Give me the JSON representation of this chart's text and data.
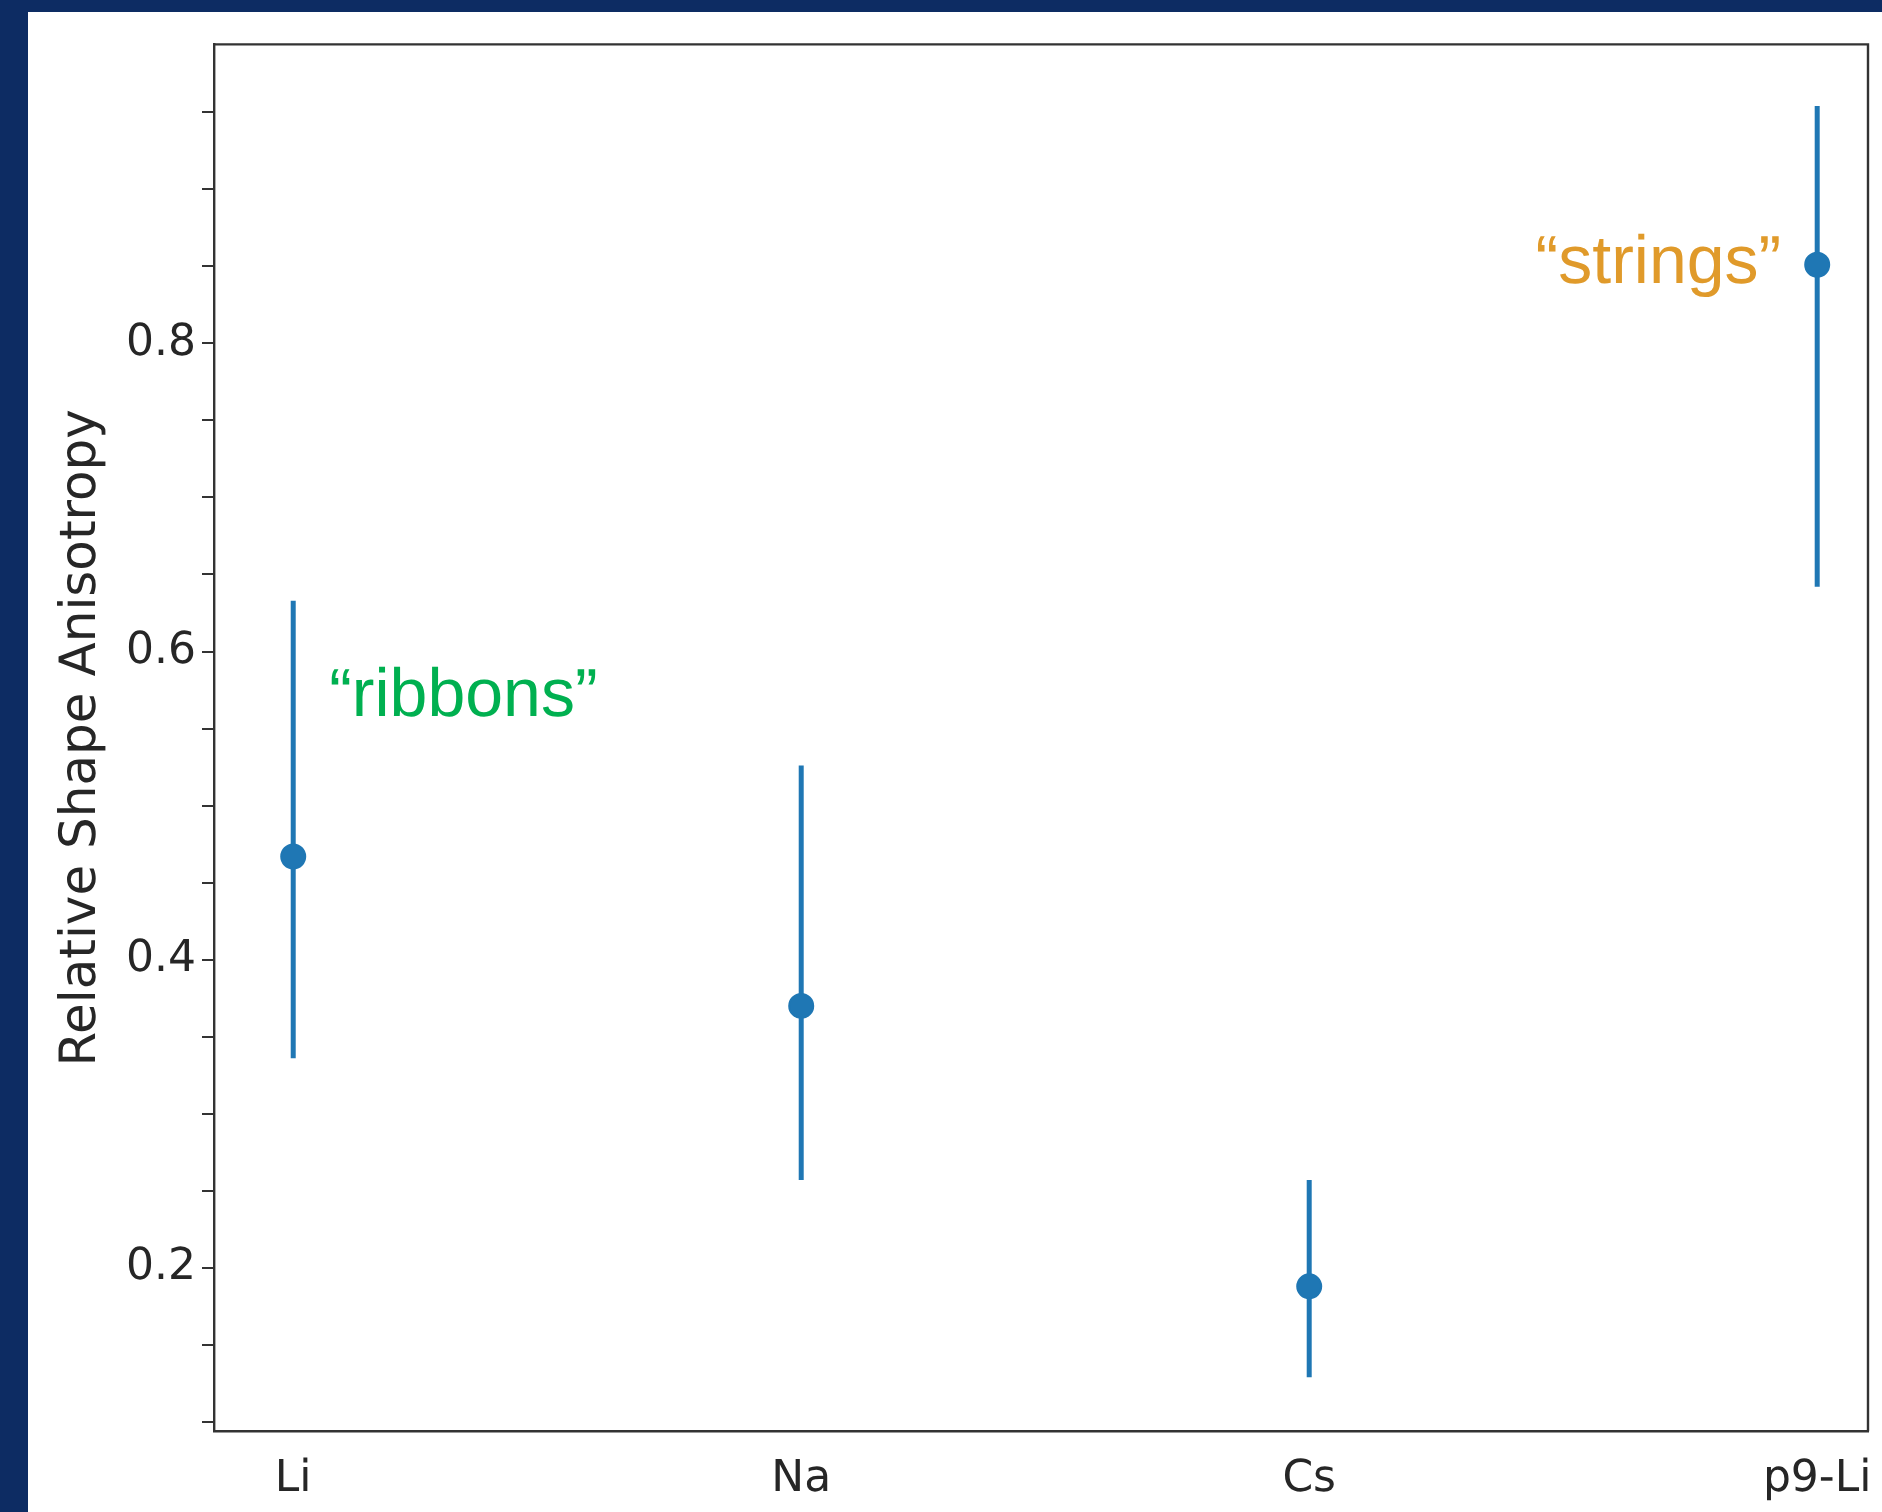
{
  "chart_data": {
    "type": "scatter",
    "ylabel": "Relative Shape Anisotropy",
    "categories": [
      "Li",
      "Na",
      "Cs",
      "p9-Li"
    ],
    "series": [
      {
        "color": "#1f77b4",
        "values": [
          0.467,
          0.37,
          0.188,
          0.851
        ],
        "errors": [
          [
            0.336,
            0.633
          ],
          [
            0.257,
            0.526
          ],
          [
            0.129,
            0.257
          ],
          [
            0.642,
            0.954
          ]
        ]
      }
    ],
    "ylim": [
      0.094,
      0.994
    ],
    "yticks": [
      {
        "value": 0.1,
        "label": null
      },
      {
        "value": 0.15,
        "label": null
      },
      0.2,
      {
        "value": 0.25,
        "label": null
      },
      {
        "value": 0.3,
        "label": null
      },
      {
        "value": 0.35,
        "label": null
      },
      0.4,
      {
        "value": 0.45,
        "label": null
      },
      {
        "value": 0.5,
        "label": null
      },
      {
        "value": 0.55,
        "label": null
      },
      0.6,
      {
        "value": 0.65,
        "label": null
      },
      {
        "value": 0.7,
        "label": null
      },
      {
        "value": 0.75,
        "label": null
      },
      0.8,
      {
        "value": 0.85,
        "label": null
      },
      {
        "value": 0.9,
        "label": null
      },
      {
        "value": 0.95,
        "label": null
      }
    ],
    "marker": "circle",
    "grid": false,
    "legend": false,
    "annotations": [
      {
        "text": "“ribbons”",
        "x": "Li",
        "y": 0.57
      },
      {
        "text": "“strings”",
        "x": "p9-Li",
        "y": 0.851
      }
    ]
  }
}
